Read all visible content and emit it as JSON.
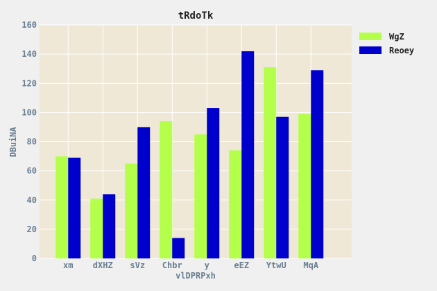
{
  "chart_data": {
    "type": "bar",
    "title": "tRdoTk",
    "xlabel": "vlDPRPxh",
    "ylabel": "DBuiNA",
    "categories": [
      "xm",
      "dXHZ",
      "sVz",
      "Chbr",
      "y",
      "eEZ",
      "YtwU",
      "MqA"
    ],
    "series": [
      {
        "name": "WgZ",
        "values": [
          70,
          41,
          65,
          94,
          85,
          74,
          131,
          99
        ],
        "color": "#b3ff4a"
      },
      {
        "name": "Reoey",
        "values": [
          69,
          44,
          90,
          14,
          103,
          142,
          97,
          129
        ],
        "color": "#0000cc"
      }
    ],
    "ylim": [
      0,
      160
    ],
    "yticks": [
      0,
      20,
      40,
      60,
      80,
      100,
      120,
      140,
      160
    ],
    "grid": true,
    "legend_position": "top-right",
    "plot_background": "#f0e8d6"
  }
}
